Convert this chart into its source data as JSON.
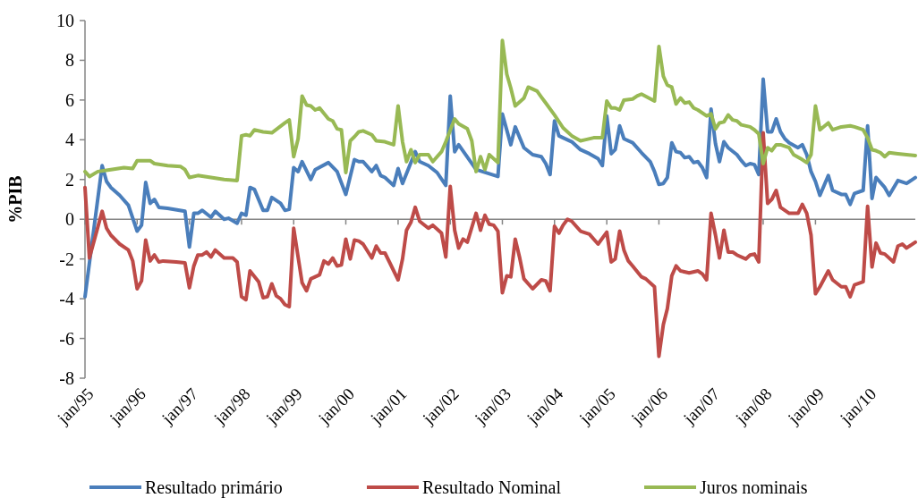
{
  "chart_data": {
    "type": "line",
    "ylabel": "%PIB",
    "xlim": [
      "1995-01",
      "2010-12"
    ],
    "ylim": [
      -8,
      10
    ],
    "yticks": [
      -8,
      -6,
      -4,
      -2,
      0,
      2,
      4,
      6,
      8,
      10
    ],
    "xticks": [
      {
        "value": "1995-01",
        "label": "jan/95"
      },
      {
        "value": "1996-01",
        "label": "jan/96"
      },
      {
        "value": "1997-01",
        "label": "jan/97"
      },
      {
        "value": "1998-01",
        "label": "jan/98"
      },
      {
        "value": "1999-01",
        "label": "jan/99"
      },
      {
        "value": "2000-01",
        "label": "jan/00"
      },
      {
        "value": "2001-01",
        "label": "jan/01"
      },
      {
        "value": "2002-01",
        "label": "jan/02"
      },
      {
        "value": "2003-01",
        "label": "jan/03"
      },
      {
        "value": "2004-01",
        "label": "jan/04"
      },
      {
        "value": "2005-01",
        "label": "jan/05"
      },
      {
        "value": "2006-01",
        "label": "jan/06"
      },
      {
        "value": "2007-01",
        "label": "jan/07"
      },
      {
        "value": "2008-01",
        "label": "jan/08"
      },
      {
        "value": "2009-01",
        "label": "jan/09"
      },
      {
        "value": "2010-01",
        "label": "jan/10"
      }
    ],
    "legend": "bottom",
    "line_style": "solid",
    "series": [
      {
        "name": "Resultado primário",
        "color": "#4a7ebb",
        "x": [
          "1995-01",
          "1995-05",
          "1995-06",
          "1995-07",
          "1995-09",
          "1995-11",
          "1996-01",
          "1996-02",
          "1996-03",
          "1996-04",
          "1996-05",
          "1996-06",
          "1996-08",
          "1996-12",
          "1997-01",
          "1997-02",
          "1997-03",
          "1997-04",
          "1997-06",
          "1997-07",
          "1997-09",
          "1997-10",
          "1997-12",
          "1998-01",
          "1998-02",
          "1998-03",
          "1998-04",
          "1998-06",
          "1998-07",
          "1998-08",
          "1998-10",
          "1998-11",
          "1998-12",
          "1999-01",
          "1999-02",
          "1999-03",
          "1999-05",
          "1999-06",
          "1999-09",
          "1999-11",
          "2000-01",
          "2000-03",
          "2000-04",
          "2000-05",
          "2000-07",
          "2000-08",
          "2000-09",
          "2000-10",
          "2000-12",
          "2001-01",
          "2001-02",
          "2001-05",
          "2001-06",
          "2001-08",
          "2001-10",
          "2001-12",
          "2002-01",
          "2002-02",
          "2002-03",
          "2002-07",
          "2002-12",
          "2003-01",
          "2003-03",
          "2003-04",
          "2003-06",
          "2003-08",
          "2003-10",
          "2003-11",
          "2003-12",
          "2004-01",
          "2004-02",
          "2004-03",
          "2004-05",
          "2004-07",
          "2004-09",
          "2004-11",
          "2004-12",
          "2005-01",
          "2005-02",
          "2005-03",
          "2005-04",
          "2005-05",
          "2005-07",
          "2005-09",
          "2005-11",
          "2005-12",
          "2006-01",
          "2006-02",
          "2006-03",
          "2006-04",
          "2006-05",
          "2006-06",
          "2006-07",
          "2006-08",
          "2006-09",
          "2006-10",
          "2006-11",
          "2006-12",
          "2007-01",
          "2007-02",
          "2007-03",
          "2007-04",
          "2007-05",
          "2007-07",
          "2007-08",
          "2007-09",
          "2007-10",
          "2007-11",
          "2007-12",
          "2008-01",
          "2008-02",
          "2008-03",
          "2008-04",
          "2008-05",
          "2008-06",
          "2008-07",
          "2008-09",
          "2008-10",
          "2008-11",
          "2008-12",
          "2009-01",
          "2009-02",
          "2009-04",
          "2009-05",
          "2009-07",
          "2009-08",
          "2009-09",
          "2009-10",
          "2009-12",
          "2010-01",
          "2010-02",
          "2010-03",
          "2010-05",
          "2010-06",
          "2010-08",
          "2010-10",
          "2010-12"
        ],
        "values": [
          -3.9,
          2.7,
          1.9,
          1.6,
          1.2,
          0.7,
          -0.6,
          -0.3,
          1.85,
          0.8,
          1.0,
          0.6,
          0.55,
          0.4,
          -1.4,
          0.3,
          0.3,
          0.45,
          0.1,
          0.4,
          0,
          0.05,
          -0.2,
          0.3,
          0.2,
          1.6,
          1.5,
          0.45,
          0.45,
          1.1,
          0.8,
          0.45,
          0.5,
          2.6,
          2.4,
          2.9,
          2.0,
          2.5,
          2.85,
          2.4,
          1.25,
          3.0,
          2.9,
          2.9,
          2.4,
          2.7,
          2.2,
          2.1,
          1.7,
          2.55,
          1.8,
          3.4,
          2.9,
          2.7,
          2.35,
          1.7,
          6.2,
          3.4,
          3.75,
          2.5,
          2.15,
          5.3,
          3.75,
          4.65,
          3.6,
          3.25,
          3.15,
          2.8,
          2.25,
          4.95,
          4.2,
          4.1,
          3.9,
          3.5,
          3.3,
          3.05,
          2.7,
          5.2,
          3.3,
          3.5,
          4.7,
          4.05,
          3.85,
          3.35,
          2.9,
          2.4,
          1.75,
          1.8,
          2.1,
          3.85,
          3.4,
          3.35,
          3.1,
          3.15,
          2.85,
          2.9,
          2.6,
          2.1,
          5.55,
          3.8,
          2.9,
          3.9,
          3.6,
          3.25,
          2.95,
          2.7,
          2.8,
          2.75,
          2.25,
          7.05,
          4.4,
          4.4,
          5.05,
          4.4,
          4.05,
          3.85,
          3.6,
          3.75,
          3.25,
          2.4,
          1.9,
          1.2,
          2.2,
          1.45,
          1.25,
          1.25,
          0.75,
          1.3,
          1.45,
          4.7,
          1.05,
          2.1,
          1.6,
          1.2,
          1.95,
          1.8,
          2.1
        ]
      },
      {
        "name": "Resultado Nominal",
        "color": "#be4b48",
        "x": [
          "1995-01",
          "1995-02",
          "1995-05",
          "1995-06",
          "1995-07",
          "1995-09",
          "1995-11",
          "1995-12",
          "1996-01",
          "1996-02",
          "1996-03",
          "1996-04",
          "1996-05",
          "1996-06",
          "1996-07",
          "1996-10",
          "1996-12",
          "1997-01",
          "1997-02",
          "1997-03",
          "1997-04",
          "1997-05",
          "1997-06",
          "1997-07",
          "1997-09",
          "1997-11",
          "1997-12",
          "1998-01",
          "1998-02",
          "1998-03",
          "1998-05",
          "1998-06",
          "1998-07",
          "1998-08",
          "1998-09",
          "1998-10",
          "1998-11",
          "1998-12",
          "1999-01",
          "1999-02",
          "1999-03",
          "1999-04",
          "1999-05",
          "1999-07",
          "1999-08",
          "1999-09",
          "1999-10",
          "1999-11",
          "1999-12",
          "2000-01",
          "2000-02",
          "2000-03",
          "2000-04",
          "2000-05",
          "2000-07",
          "2000-08",
          "2000-09",
          "2000-10",
          "2000-11",
          "2001-01",
          "2001-02",
          "2001-03",
          "2001-04",
          "2001-05",
          "2001-06",
          "2001-08",
          "2001-09",
          "2001-11",
          "2001-12",
          "2002-01",
          "2002-02",
          "2002-03",
          "2002-04",
          "2002-05",
          "2002-07",
          "2002-08",
          "2002-09",
          "2002-10",
          "2002-11",
          "2002-12",
          "2003-01",
          "2003-02",
          "2003-03",
          "2003-04",
          "2003-05",
          "2003-06",
          "2003-08",
          "2003-10",
          "2003-11",
          "2003-12",
          "2004-01",
          "2004-02",
          "2004-03",
          "2004-04",
          "2004-05",
          "2004-07",
          "2004-09",
          "2004-11",
          "2005-01",
          "2005-02",
          "2005-03",
          "2005-04",
          "2005-05",
          "2005-06",
          "2005-07",
          "2005-09",
          "2005-10",
          "2005-12",
          "2006-01",
          "2006-02",
          "2006-03",
          "2006-04",
          "2006-05",
          "2006-06",
          "2006-08",
          "2006-10",
          "2006-11",
          "2006-12",
          "2007-01",
          "2007-02",
          "2007-03",
          "2007-04",
          "2007-05",
          "2007-06",
          "2007-07",
          "2007-09",
          "2007-10",
          "2007-11",
          "2007-12",
          "2008-01",
          "2008-02",
          "2008-03",
          "2008-04",
          "2008-05",
          "2008-07",
          "2008-09",
          "2008-10",
          "2008-11",
          "2008-12",
          "2009-01",
          "2009-02",
          "2009-04",
          "2009-05",
          "2009-07",
          "2009-08",
          "2009-09",
          "2009-10",
          "2009-12",
          "2010-01",
          "2010-02",
          "2010-03",
          "2010-04",
          "2010-05",
          "2010-07",
          "2010-08",
          "2010-09",
          "2010-10",
          "2010-12"
        ],
        "values": [
          1.6,
          -1.95,
          0.4,
          -0.45,
          -0.8,
          -1.25,
          -1.55,
          -2.1,
          -3.5,
          -3.1,
          -1.05,
          -2.1,
          -1.8,
          -2.15,
          -2.1,
          -2.15,
          -2.2,
          -3.45,
          -2.35,
          -1.8,
          -1.8,
          -1.65,
          -1.9,
          -1.55,
          -1.95,
          -1.95,
          -2.15,
          -3.9,
          -4.05,
          -2.6,
          -3.15,
          -3.95,
          -3.9,
          -3.25,
          -3.85,
          -4.0,
          -4.3,
          -4.4,
          -0.45,
          -1.9,
          -3.2,
          -3.6,
          -3.0,
          -2.8,
          -2.1,
          -2.25,
          -1.95,
          -2.35,
          -2.3,
          -1.0,
          -2.0,
          -1.05,
          -1.1,
          -1.25,
          -1.95,
          -1.35,
          -1.7,
          -1.7,
          -2.15,
          -3.05,
          -2.0,
          -0.55,
          -0.15,
          0.6,
          -0.1,
          -0.45,
          -0.3,
          -0.7,
          -1.9,
          1.65,
          -0.55,
          -1.45,
          -1.0,
          -1.15,
          0.3,
          -0.55,
          0.2,
          -0.25,
          -0.3,
          -0.6,
          -3.7,
          -2.85,
          -2.9,
          -1.0,
          -1.9,
          -3.0,
          -3.5,
          -3.05,
          -3.1,
          -3.6,
          -0.35,
          -0.7,
          -0.3,
          0,
          -0.1,
          -0.6,
          -0.75,
          -1.25,
          -0.65,
          -2.15,
          -2.0,
          -0.6,
          -1.55,
          -2.1,
          -2.35,
          -2.9,
          -3.0,
          -3.4,
          -6.9,
          -5.3,
          -4.5,
          -2.85,
          -2.35,
          -2.6,
          -2.7,
          -2.6,
          -2.75,
          -3.05,
          0.3,
          -0.8,
          -1.95,
          -0.55,
          -1.65,
          -1.65,
          -1.8,
          -2.0,
          -1.8,
          -1.75,
          -2.15,
          4.35,
          0.8,
          1.0,
          1.45,
          0.6,
          0.3,
          0.3,
          0.75,
          0.3,
          -0.8,
          -3.75,
          -3.4,
          -2.6,
          -3.05,
          -3.4,
          -3.4,
          -3.9,
          -3.3,
          -3.15,
          0.65,
          -2.4,
          -1.2,
          -1.7,
          -1.75,
          -2.15,
          -1.35,
          -1.25,
          -1.45,
          -1.15
        ]
      },
      {
        "name": "Juros nominais",
        "color": "#98b954",
        "x": [
          "1995-01",
          "1995-02",
          "1995-04",
          "1995-07",
          "1995-10",
          "1995-12",
          "1996-01",
          "1996-04",
          "1996-05",
          "1996-08",
          "1996-11",
          "1996-12",
          "1997-01",
          "1997-03",
          "1997-06",
          "1997-09",
          "1997-12",
          "1998-01",
          "1998-02",
          "1998-03",
          "1998-04",
          "1998-06",
          "1998-08",
          "1998-11",
          "1998-12",
          "1999-01",
          "1999-02",
          "1999-03",
          "1999-04",
          "1999-05",
          "1999-06",
          "1999-07",
          "1999-09",
          "1999-10",
          "1999-11",
          "1999-12",
          "2000-01",
          "2000-02",
          "2000-03",
          "2000-04",
          "2000-05",
          "2000-07",
          "2000-08",
          "2000-10",
          "2000-12",
          "2001-01",
          "2001-02",
          "2001-03",
          "2001-04",
          "2001-05",
          "2001-06",
          "2001-08",
          "2001-09",
          "2001-11",
          "2001-12",
          "2002-02",
          "2002-03",
          "2002-05",
          "2002-06",
          "2002-07",
          "2002-08",
          "2002-09",
          "2002-10",
          "2002-12",
          "2003-01",
          "2003-02",
          "2003-03",
          "2003-04",
          "2003-06",
          "2003-07",
          "2003-09",
          "2003-10",
          "2003-11",
          "2004-01",
          "2004-03",
          "2004-05",
          "2004-07",
          "2004-08",
          "2004-10",
          "2004-12",
          "2005-01",
          "2005-02",
          "2005-03",
          "2005-04",
          "2005-05",
          "2005-07",
          "2005-08",
          "2005-09",
          "2005-12",
          "2006-01",
          "2006-02",
          "2006-03",
          "2006-04",
          "2006-05",
          "2006-06",
          "2006-07",
          "2006-08",
          "2006-09",
          "2006-10",
          "2006-12",
          "2007-01",
          "2007-02",
          "2007-03",
          "2007-04",
          "2007-05",
          "2007-06",
          "2007-07",
          "2007-08",
          "2007-10",
          "2007-11",
          "2007-12",
          "2008-01",
          "2008-02",
          "2008-03",
          "2008-04",
          "2008-05",
          "2008-07",
          "2008-08",
          "2008-10",
          "2008-11",
          "2008-12",
          "2009-01",
          "2009-02",
          "2009-04",
          "2009-05",
          "2009-07",
          "2009-09",
          "2009-10",
          "2009-12",
          "2010-01",
          "2010-02",
          "2010-03",
          "2010-04",
          "2010-05",
          "2010-06",
          "2010-08",
          "2010-10",
          "2010-12"
        ],
        "values": [
          2.4,
          2.15,
          2.4,
          2.5,
          2.6,
          2.55,
          2.95,
          2.95,
          2.8,
          2.7,
          2.65,
          2.5,
          2.1,
          2.2,
          2.1,
          2.0,
          1.95,
          4.2,
          4.25,
          4.2,
          4.5,
          4.4,
          4.35,
          4.85,
          5.0,
          3.15,
          4.05,
          6.2,
          5.75,
          5.7,
          5.5,
          5.6,
          5.05,
          4.95,
          4.55,
          4.5,
          2.35,
          3.95,
          4.15,
          4.4,
          4.45,
          4.25,
          3.95,
          3.9,
          3.75,
          5.7,
          3.9,
          2.9,
          3.5,
          2.85,
          3.25,
          3.25,
          2.9,
          3.4,
          3.9,
          5.05,
          4.8,
          4.55,
          3.95,
          2.4,
          3.15,
          2.5,
          3.25,
          2.85,
          9.0,
          7.3,
          6.6,
          5.7,
          6.1,
          6.65,
          6.45,
          6.15,
          5.85,
          5.25,
          4.6,
          4.2,
          3.95,
          4.0,
          4.1,
          4.1,
          5.95,
          5.6,
          5.6,
          5.5,
          6.0,
          6.05,
          6.2,
          6.3,
          5.95,
          8.7,
          7.2,
          6.75,
          6.65,
          5.8,
          6.1,
          5.85,
          5.9,
          5.6,
          5.5,
          5.2,
          5.3,
          4.55,
          4.85,
          4.9,
          5.25,
          5.0,
          4.95,
          4.75,
          4.65,
          4.5,
          4.3,
          2.8,
          3.6,
          3.45,
          3.75,
          3.75,
          3.6,
          3.25,
          3.0,
          2.85,
          3.25,
          5.7,
          4.5,
          4.85,
          4.5,
          4.65,
          4.7,
          4.65,
          4.5,
          4.1,
          3.5,
          3.45,
          3.35,
          3.15,
          3.35,
          3.3,
          3.25,
          3.2
        ]
      }
    ]
  }
}
